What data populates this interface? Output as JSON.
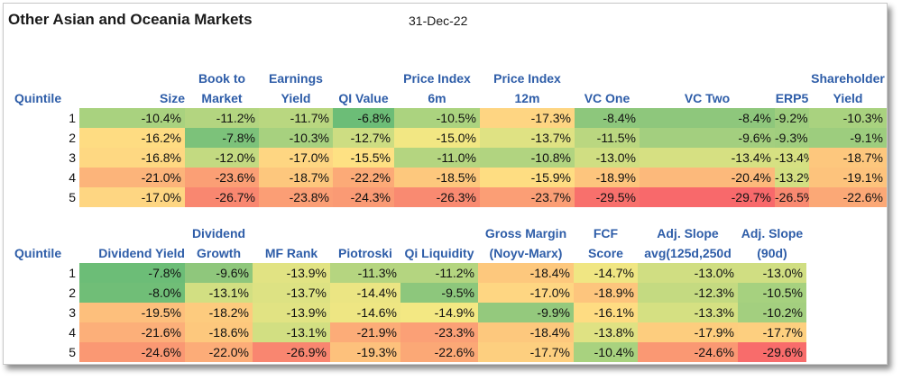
{
  "title": "Other Asian and Oceania Markets",
  "date": "31-Dec-22",
  "table1": {
    "headers": [
      [
        "Quintile"
      ],
      [
        "Size"
      ],
      [
        "Book to",
        "Market"
      ],
      [
        "Earnings",
        "Yield"
      ],
      [
        "QI Value"
      ],
      [
        "Price Index",
        "6m"
      ],
      [
        "Price Index",
        "12m"
      ],
      [
        "VC One"
      ],
      [
        "VC Two"
      ],
      [
        "ERP5"
      ],
      [
        "Shareholder",
        "Yield"
      ]
    ],
    "rows": [
      {
        "q": "1",
        "v": [
          "-10.4%",
          "-11.2%",
          "-11.7%",
          "-6.8%",
          "-10.5%",
          "-17.3%",
          "-8.4%",
          "-8.4%",
          "-9.2%",
          "-10.3%"
        ],
        "c": [
          "#a9d27f",
          "#b3d580",
          "#b9d780",
          "#6cbd77",
          "#abd37f",
          "#fed582",
          "#8dc77c",
          "#8ec77c",
          "#9ecd7e",
          "#a9d27f"
        ]
      },
      {
        "q": "2",
        "v": [
          "-16.2%",
          "-7.8%",
          "-10.3%",
          "-12.7%",
          "-15.0%",
          "-13.7%",
          "-11.5%",
          "-9.6%",
          "-9.3%",
          "-9.1%"
        ],
        "c": [
          "#fedc82",
          "#7cc27a",
          "#a7d17f",
          "#cddd82",
          "#f2e783",
          "#dfe283",
          "#bad780",
          "#a3cf7f",
          "#a0ce7e",
          "#9dcd7e"
        ]
      },
      {
        "q": "3",
        "v": [
          "-16.8%",
          "-12.0%",
          "-17.0%",
          "-15.5%",
          "-11.0%",
          "-10.8%",
          "-13.0%",
          "-13.4%",
          "-13.4%",
          "-18.7%"
        ],
        "c": [
          "#fed882",
          "#c3da81",
          "#fed682",
          "#fee183",
          "#b4d580",
          "#b1d480",
          "#d0de82",
          "#d6e082",
          "#d6e082",
          "#fdc77d"
        ]
      },
      {
        "q": "4",
        "v": [
          "-21.0%",
          "-23.6%",
          "-18.7%",
          "-22.2%",
          "-18.5%",
          "-15.9%",
          "-18.9%",
          "-20.4%",
          "-13.2%",
          "-19.1%"
        ],
        "c": [
          "#fcb47a",
          "#fb9f75",
          "#fdc77d",
          "#fcaa77",
          "#fdc87d",
          "#fedd82",
          "#fdc57d",
          "#fcb97b",
          "#d3df82",
          "#fdc37c"
        ]
      },
      {
        "q": "5",
        "v": [
          "-17.0%",
          "-26.7%",
          "-23.8%",
          "-24.3%",
          "-26.3%",
          "-23.7%",
          "-29.5%",
          "-29.7%",
          "-26.5%",
          "-22.6%"
        ],
        "c": [
          "#fed682",
          "#f98770",
          "#fb9e75",
          "#fa9a74",
          "#f98a71",
          "#fb9e75",
          "#f8706c",
          "#f8696b",
          "#f98970",
          "#fba876"
        ]
      }
    ]
  },
  "table2": {
    "headers": [
      [
        "Quintile"
      ],
      [
        "Dividend Yield"
      ],
      [
        "Dividend",
        "Growth"
      ],
      [
        "MF Rank"
      ],
      [
        "Piotroski"
      ],
      [
        "Qi Liquidity"
      ],
      [
        "Gross Margin",
        "(Noyv-Marx)"
      ],
      [
        "FCF",
        "Score"
      ],
      [
        "Adj. Slope",
        "avg(125d,250d"
      ],
      [
        "Adj. Slope",
        "(90d)"
      ]
    ],
    "rows": [
      {
        "q": "1",
        "v": [
          "-7.8%",
          "-9.6%",
          "-13.9%",
          "-11.3%",
          "-11.2%",
          "-18.4%",
          "-14.7%",
          "-13.0%",
          "-13.0%"
        ],
        "c": [
          "#6cbd77",
          "#8fc77c",
          "#e1e383",
          "#b5d580",
          "#b4d580",
          "#fdc87d",
          "#f0e683",
          "#d0de82",
          "#d0de82"
        ]
      },
      {
        "q": "2",
        "v": [
          "-8.0%",
          "-13.1%",
          "-13.7%",
          "-14.4%",
          "-9.5%",
          "-17.0%",
          "-18.9%",
          "-12.3%",
          "-10.5%"
        ],
        "c": [
          "#70be77",
          "#d2df82",
          "#dde283",
          "#ebe583",
          "#8dc77c",
          "#fed682",
          "#fdc57d",
          "#c4da81",
          "#a6d17f"
        ]
      },
      {
        "q": "3",
        "v": [
          "-19.5%",
          "-18.2%",
          "-13.9%",
          "-14.6%",
          "-14.9%",
          "-9.9%",
          "-16.1%",
          "-13.3%",
          "-10.2%"
        ],
        "c": [
          "#fdbf7c",
          "#fdcb7e",
          "#e1e383",
          "#eee683",
          "#f3e883",
          "#94c97d",
          "#fedc82",
          "#d5e082",
          "#a3cf7f"
        ]
      },
      {
        "q": "4",
        "v": [
          "-21.6%",
          "-18.6%",
          "-13.1%",
          "-21.9%",
          "-23.3%",
          "-18.4%",
          "-13.8%",
          "-17.9%",
          "-17.7%"
        ],
        "c": [
          "#fcaf79",
          "#fdc87d",
          "#d2df82",
          "#fcac78",
          "#fba076",
          "#fdc87d",
          "#dfe283",
          "#fdcd7e",
          "#fdcf7f"
        ]
      },
      {
        "q": "5",
        "v": [
          "-24.6%",
          "-22.0%",
          "-26.9%",
          "-19.3%",
          "-22.6%",
          "-17.7%",
          "-10.4%",
          "-24.6%",
          "-29.6%"
        ],
        "c": [
          "#fa9873",
          "#fcac78",
          "#f98670",
          "#fdc17c",
          "#fba876",
          "#fdcf7f",
          "#a8d27f",
          "#fa9873",
          "#f86c6b"
        ]
      }
    ]
  }
}
